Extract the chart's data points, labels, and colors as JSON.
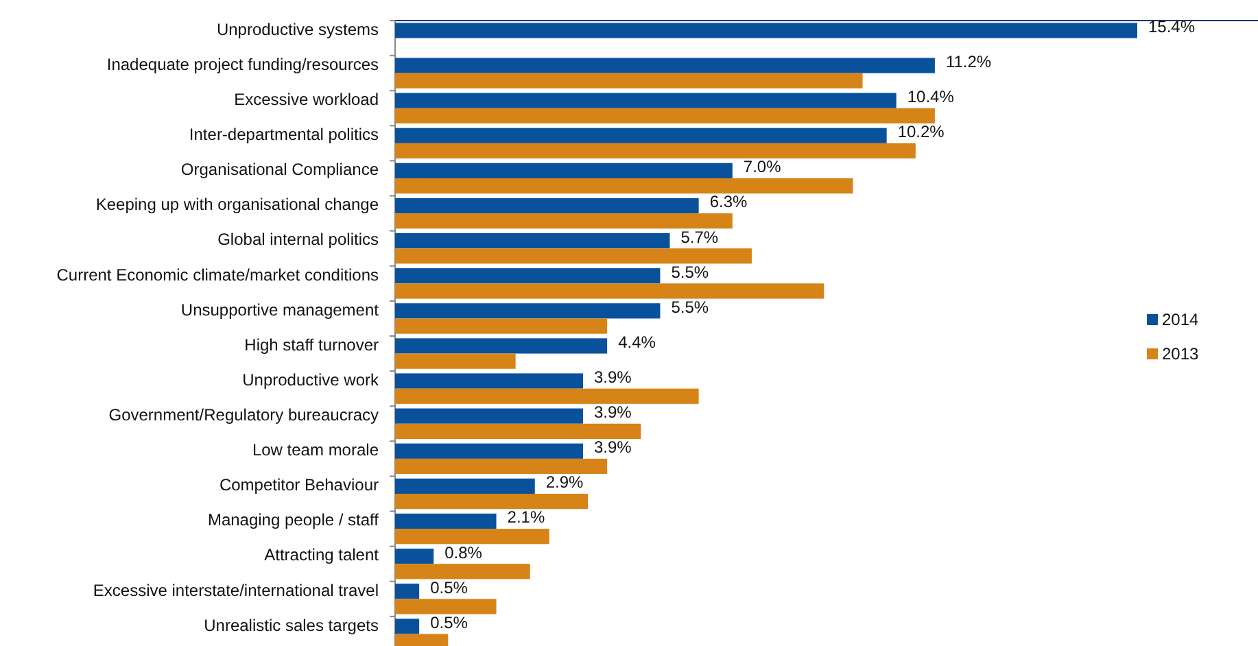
{
  "chart_data": {
    "type": "bar",
    "orientation": "horizontal",
    "categories": [
      "Unproductive systems",
      "Inadequate project funding/resources",
      "Excessive workload",
      "Inter-departmental politics",
      "Organisational Compliance",
      "Keeping up with organisational change",
      "Global internal politics",
      "Current Economic climate/market conditions",
      "Unsupportive management",
      "High staff turnover",
      "Unproductive work ",
      "Government/Regulatory bureaucracy",
      "Low team morale",
      "Competitor Behaviour",
      "Managing people / staff",
      "Attracting talent",
      "Excessive interstate/international travel",
      "Unrealistic sales targets"
    ],
    "series": [
      {
        "name": "2014",
        "color": "#0a519b",
        "values": [
          15.4,
          11.2,
          10.4,
          10.2,
          7.0,
          6.3,
          5.7,
          5.5,
          5.5,
          4.4,
          3.9,
          3.9,
          3.9,
          2.9,
          2.1,
          0.8,
          0.5,
          0.5
        ],
        "value_labels": [
          "15.4%",
          "11.2%",
          "10.4%",
          "10.2%",
          "7.0%",
          "6.3%",
          "5.7%",
          "5.5%",
          "5.5%",
          "4.4%",
          "3.9%",
          "3.9%",
          "3.9%",
          "2.9%",
          "2.1%",
          "0.8%",
          "0.5%",
          "0.5%"
        ]
      },
      {
        "name": "2013",
        "color": "#d68418",
        "values": [
          null,
          9.7,
          11.2,
          10.8,
          9.5,
          7.0,
          7.4,
          8.9,
          4.4,
          2.5,
          6.3,
          5.1,
          4.4,
          4.0,
          3.2,
          2.8,
          2.1,
          1.1
        ]
      }
    ],
    "legend": "right"
  }
}
